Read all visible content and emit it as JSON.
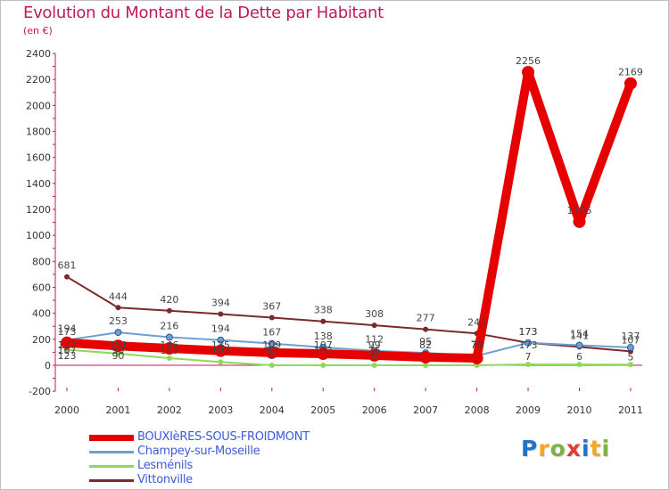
{
  "title": "Evolution du Montant de la Dette par Habitant",
  "subtitle": "(en €)",
  "brand": [
    "P",
    "r",
    "o",
    "x",
    "i",
    "t",
    "i"
  ],
  "brand_colors": [
    "#1f74c8",
    "#f5a623",
    "#7cb342",
    "#e53935",
    "#1f74c8",
    "#f5a623",
    "#7cb342"
  ],
  "chart_data": {
    "type": "line",
    "title": "Evolution du Montant de la Dette par Habitant",
    "ylabel": "(en €)",
    "ylim": [
      -200,
      2400
    ],
    "yticks": [
      -200,
      0,
      200,
      400,
      600,
      800,
      1000,
      1200,
      1400,
      1600,
      1800,
      2000,
      2200,
      2400
    ],
    "categories": [
      "2000",
      "2001",
      "2002",
      "2003",
      "2004",
      "2005",
      "2006",
      "2007",
      "2008",
      "2009",
      "2010",
      "2011"
    ],
    "series": [
      {
        "name": "BOUXIèRES-SOUS-FROIDMONT",
        "color": "#e60000",
        "values": [
          173,
          149,
          130,
          112,
          97,
          89,
          76,
          62,
          55,
          2256,
          1105,
          2169
        ],
        "labels": [
          "173",
          "",
          "",
          "",
          "",
          "",
          "",
          "",
          "",
          "2256",
          "1105",
          "2169"
        ]
      },
      {
        "name": "Champey-sur-Moseille",
        "color": "#6f9fcf",
        "values": [
          194,
          253,
          216,
          194,
          167,
          138,
          112,
          95,
          73,
          173,
          154,
          137
        ],
        "labels": [
          "194",
          "253",
          "216",
          "194",
          "167",
          "138",
          "112",
          "95",
          "73",
          "173",
          "154",
          "137"
        ]
      },
      {
        "name": "Lesménils",
        "color": "#8fd85a",
        "values": [
          120,
          90,
          55,
          25,
          0,
          0,
          0,
          0,
          0,
          7,
          6,
          5
        ],
        "labels": [
          "",
          "",
          "",
          "",
          "",
          "",
          "",
          "",
          "",
          "7",
          "6",
          "5"
        ]
      },
      {
        "name": "Vittonville",
        "color": "#7a2a2a",
        "values": [
          681,
          444,
          420,
          394,
          367,
          338,
          308,
          277,
          245,
          173,
          141,
          107
        ],
        "labels": [
          "681",
          "444",
          "420",
          "394",
          "367",
          "338",
          "308",
          "277",
          "245",
          "173",
          "141",
          "107"
        ]
      }
    ],
    "extra_labels": [
      {
        "x": "2000",
        "text": "177"
      },
      {
        "x": "2000",
        "text": "167"
      },
      {
        "x": "2000",
        "text": "123"
      },
      {
        "x": "2001",
        "text": "151"
      },
      {
        "x": "2001",
        "text": "93"
      },
      {
        "x": "2001",
        "text": "90"
      },
      {
        "x": "2002",
        "text": "146"
      },
      {
        "x": "2002",
        "text": "133"
      },
      {
        "x": "2003",
        "text": "135"
      },
      {
        "x": "2003",
        "text": "102"
      },
      {
        "x": "2004",
        "text": "109"
      },
      {
        "x": "2004",
        "text": "97"
      },
      {
        "x": "2004",
        "text": "0"
      },
      {
        "x": "2005",
        "text": "107"
      },
      {
        "x": "2005",
        "text": "102"
      },
      {
        "x": "2006",
        "text": "99"
      },
      {
        "x": "2006",
        "text": "76"
      },
      {
        "x": "2006",
        "text": "0"
      },
      {
        "x": "2007",
        "text": "82"
      },
      {
        "x": "2008",
        "text": "79"
      },
      {
        "x": "2009",
        "text": "173"
      }
    ],
    "legend_position": "bottom-left",
    "grid": false
  }
}
